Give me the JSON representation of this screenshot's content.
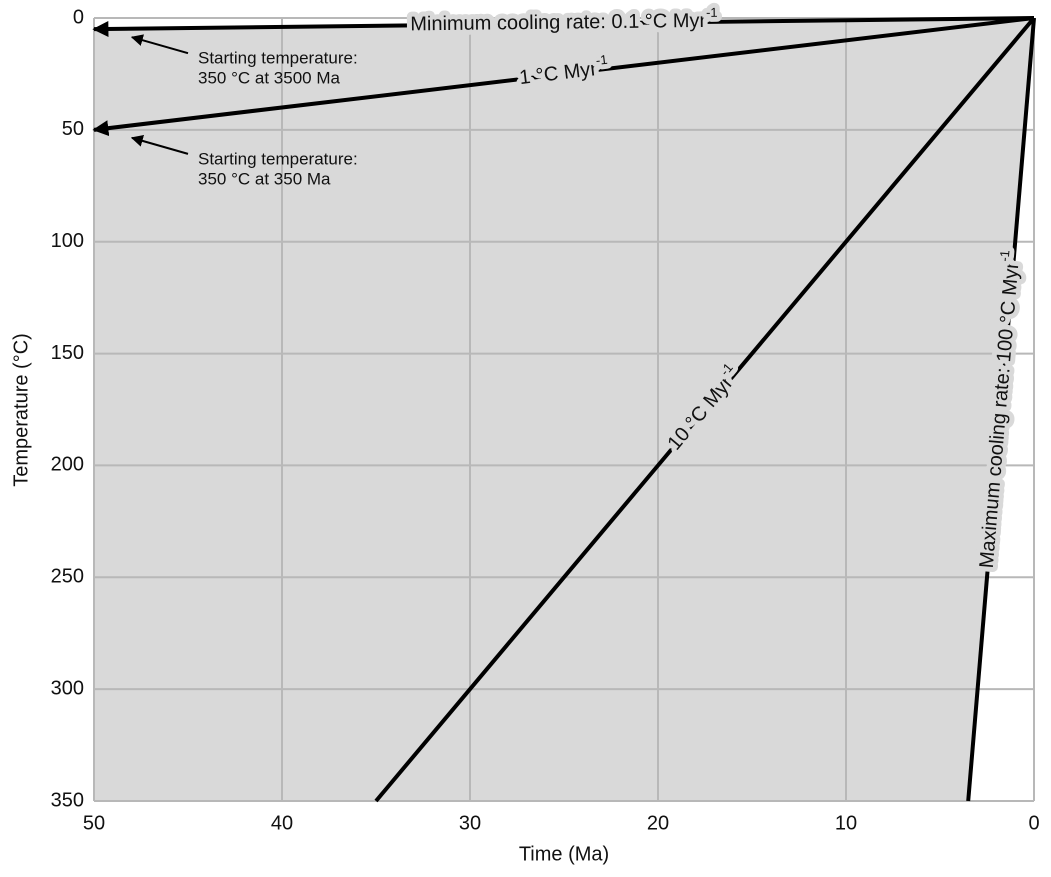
{
  "chart_data": {
    "type": "line",
    "xlabel": "Time (Ma)",
    "ylabel": "Temperature (°C)",
    "xlim": [
      50,
      0
    ],
    "ylim": [
      0,
      350
    ],
    "xticks": [
      50,
      40,
      30,
      20,
      10,
      0
    ],
    "yticks": [
      0,
      50,
      100,
      150,
      200,
      250,
      300,
      350
    ],
    "grid": true,
    "shade_color": "#d9d9d9",
    "series": [
      {
        "name": "Minimum cooling rate: 0.1 °C Myr",
        "superscript": "-1",
        "color": "#000000",
        "arrow": true,
        "x": [
          0,
          50
        ],
        "values": [
          0,
          5
        ]
      },
      {
        "name": "1 °C Myr",
        "superscript": "-1",
        "color": "#000000",
        "arrow": true,
        "x": [
          0,
          50
        ],
        "values": [
          0,
          50
        ]
      },
      {
        "name": "10 °C Myr",
        "superscript": "-1",
        "color": "#000000",
        "arrow": false,
        "x": [
          0,
          35
        ],
        "values": [
          0,
          350
        ]
      },
      {
        "name": "Maximum cooling rate: 100 °C Myr",
        "superscript": "-1",
        "color": "#000000",
        "arrow": false,
        "x": [
          0,
          3.5
        ],
        "values": [
          0,
          350
        ]
      }
    ],
    "annotations": [
      {
        "lines": [
          "Starting temperature:",
          "350 °C at 3500 Ma"
        ]
      },
      {
        "lines": [
          "Starting temperature:",
          "350 °C at 350 Ma"
        ]
      }
    ]
  }
}
